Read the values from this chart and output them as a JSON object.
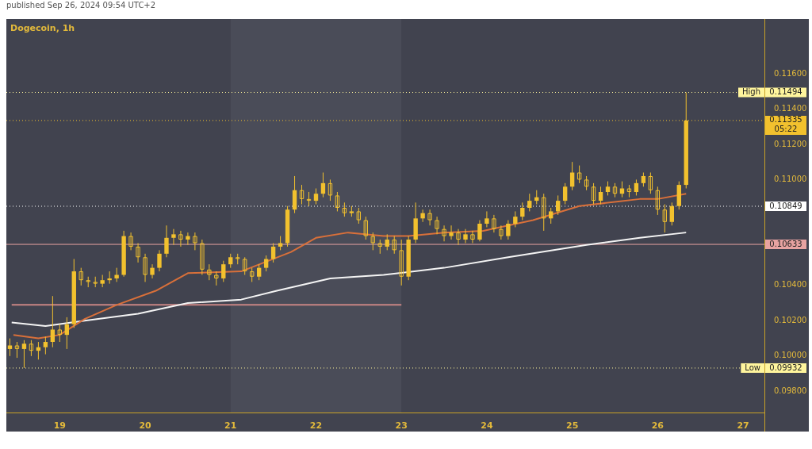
{
  "chart_data": {
    "type": "candlestick",
    "title": "Dogecoin, 1h",
    "subtitle": "published Sep 26, 2024 09:54 UTC+2",
    "color": "#f2c12e",
    "grid": false,
    "annotations": [
      {
        "text": "High",
        "y": 0.11494
      },
      {
        "text": "Low",
        "y": 0.09932
      }
    ],
    "xlim": [
      "2024-09-18T09:00",
      "2024-09-27T06:00"
    ],
    "xticks": [
      {
        "value": "2024-09-19",
        "label": "19"
      },
      {
        "value": "2024-09-20",
        "label": "20"
      },
      {
        "value": "2024-09-21",
        "label": "21"
      },
      {
        "value": "2024-09-22",
        "label": "22"
      },
      {
        "value": "2024-09-23",
        "label": "23"
      },
      {
        "value": "2024-09-24",
        "label": "24"
      },
      {
        "value": "2024-09-25",
        "label": "25"
      },
      {
        "value": "2024-09-26",
        "label": "26"
      },
      {
        "value": "2024-09-27",
        "label": "27"
      }
    ],
    "ylim": [
      0.0968,
      0.1191
    ],
    "yticks": [
      {
        "value": 0.098,
        "label": "0.09800"
      },
      {
        "value": 0.1,
        "label": "0.10000"
      },
      {
        "value": 0.102,
        "label": "0.10200"
      },
      {
        "value": 0.104,
        "label": "0.10400"
      },
      {
        "value": 0.11,
        "label": "0.11000"
      },
      {
        "value": 0.112,
        "label": "0.11200"
      },
      {
        "value": 0.114,
        "label": "0.11400"
      },
      {
        "value": 0.116,
        "label": "0.11600"
      }
    ],
    "bands": [
      {
        "axis": "x",
        "from": "2024-09-21",
        "to": "2024-09-23",
        "color": "#4a4c58"
      }
    ],
    "ref_lines": [
      {
        "axis": "y",
        "value": 0.11494,
        "label": "0.11494",
        "color": "#fff59d",
        "line_style": "dotted"
      },
      {
        "axis": "y",
        "value": 0.11335,
        "label": "0.11335\n05:22",
        "color": "#f2c12e",
        "line_style": "dotted"
      },
      {
        "axis": "y",
        "value": 0.10849,
        "label": "0.10849",
        "color": "#ffffff",
        "line_style": "dotted"
      },
      {
        "axis": "y",
        "value": 0.10633,
        "label": "0.10633",
        "color": "#e8a3a1",
        "line_style": "solid"
      },
      {
        "axis": "y",
        "value": 0.09932,
        "label": "0.09932",
        "color": "#fff59d",
        "line_style": "dotted"
      }
    ],
    "x": [
      "2024-09-18T10:00",
      "2024-09-18T12:00",
      "2024-09-18T14:00",
      "2024-09-18T16:00",
      "2024-09-18T18:00",
      "2024-09-18T20:00",
      "2024-09-18T22:00",
      "2024-09-19T00:00",
      "2024-09-19T02:00",
      "2024-09-19T04:00",
      "2024-09-19T06:00",
      "2024-09-19T08:00",
      "2024-09-19T10:00",
      "2024-09-19T12:00",
      "2024-09-19T14:00",
      "2024-09-19T16:00",
      "2024-09-19T18:00",
      "2024-09-19T20:00",
      "2024-09-19T22:00",
      "2024-09-20T00:00",
      "2024-09-20T02:00",
      "2024-09-20T04:00",
      "2024-09-20T06:00",
      "2024-09-20T08:00",
      "2024-09-20T10:00",
      "2024-09-20T12:00",
      "2024-09-20T14:00",
      "2024-09-20T16:00",
      "2024-09-20T18:00",
      "2024-09-20T20:00",
      "2024-09-20T22:00",
      "2024-09-21T00:00",
      "2024-09-21T02:00",
      "2024-09-21T04:00",
      "2024-09-21T06:00",
      "2024-09-21T08:00",
      "2024-09-21T10:00",
      "2024-09-21T12:00",
      "2024-09-21T14:00",
      "2024-09-21T16:00",
      "2024-09-21T18:00",
      "2024-09-21T20:00",
      "2024-09-21T22:00",
      "2024-09-22T00:00",
      "2024-09-22T02:00",
      "2024-09-22T04:00",
      "2024-09-22T06:00",
      "2024-09-22T08:00",
      "2024-09-22T10:00",
      "2024-09-22T12:00",
      "2024-09-22T14:00",
      "2024-09-22T16:00",
      "2024-09-22T18:00",
      "2024-09-22T20:00",
      "2024-09-22T22:00",
      "2024-09-23T00:00",
      "2024-09-23T02:00",
      "2024-09-23T04:00",
      "2024-09-23T06:00",
      "2024-09-23T08:00",
      "2024-09-23T10:00",
      "2024-09-23T12:00",
      "2024-09-23T14:00",
      "2024-09-23T16:00",
      "2024-09-23T18:00",
      "2024-09-23T20:00",
      "2024-09-23T22:00",
      "2024-09-24T00:00",
      "2024-09-24T02:00",
      "2024-09-24T04:00",
      "2024-09-24T06:00",
      "2024-09-24T08:00",
      "2024-09-24T10:00",
      "2024-09-24T12:00",
      "2024-09-24T14:00",
      "2024-09-24T16:00",
      "2024-09-24T18:00",
      "2024-09-24T20:00",
      "2024-09-24T22:00",
      "2024-09-25T00:00",
      "2024-09-25T02:00",
      "2024-09-25T04:00",
      "2024-09-25T06:00",
      "2024-09-25T08:00",
      "2024-09-25T10:00",
      "2024-09-25T12:00",
      "2024-09-25T14:00",
      "2024-09-25T16:00",
      "2024-09-25T18:00",
      "2024-09-25T20:00",
      "2024-09-25T22:00",
      "2024-09-26T00:00",
      "2024-09-26T02:00",
      "2024-09-26T04:00",
      "2024-09-26T06:00",
      "2024-09-26T08:00"
    ],
    "ohlc": [
      [
        0.1004,
        0.101,
        0.1,
        0.1006
      ],
      [
        0.1006,
        0.1008,
        0.0999,
        0.1004
      ],
      [
        0.1004,
        0.1009,
        0.09932,
        0.1007
      ],
      [
        0.1007,
        0.1009,
        0.1,
        0.1003
      ],
      [
        0.1003,
        0.1008,
        0.0998,
        0.1005
      ],
      [
        0.1005,
        0.1011,
        0.1001,
        0.1008
      ],
      [
        0.1008,
        0.1034,
        0.1005,
        0.1015
      ],
      [
        0.1015,
        0.1018,
        0.1008,
        0.1012
      ],
      [
        0.1012,
        0.1022,
        0.1004,
        0.1018
      ],
      [
        0.1018,
        0.1055,
        0.1016,
        0.1048
      ],
      [
        0.1048,
        0.105,
        0.104,
        0.1043
      ],
      [
        0.1043,
        0.1045,
        0.1039,
        0.1042
      ],
      [
        0.1042,
        0.1045,
        0.1039,
        0.1041
      ],
      [
        0.1041,
        0.1046,
        0.1039,
        0.1043
      ],
      [
        0.1043,
        0.1048,
        0.1041,
        0.1044
      ],
      [
        0.1044,
        0.105,
        0.1042,
        0.1046
      ],
      [
        0.1046,
        0.1071,
        0.1045,
        0.1068
      ],
      [
        0.1068,
        0.107,
        0.106,
        0.1062
      ],
      [
        0.1062,
        0.1064,
        0.1053,
        0.1056
      ],
      [
        0.1056,
        0.1058,
        0.1042,
        0.1046
      ],
      [
        0.1046,
        0.1052,
        0.1044,
        0.105
      ],
      [
        0.105,
        0.106,
        0.1048,
        0.1058
      ],
      [
        0.1058,
        0.1074,
        0.1056,
        0.1067
      ],
      [
        0.1067,
        0.1072,
        0.1063,
        0.1069
      ],
      [
        0.1069,
        0.1071,
        0.1062,
        0.1066
      ],
      [
        0.1066,
        0.107,
        0.1063,
        0.1068
      ],
      [
        0.1068,
        0.107,
        0.106,
        0.1064
      ],
      [
        0.1064,
        0.1066,
        0.1046,
        0.1049
      ],
      [
        0.1049,
        0.1052,
        0.1043,
        0.1046
      ],
      [
        0.1046,
        0.1048,
        0.104,
        0.1044
      ],
      [
        0.1044,
        0.1054,
        0.1042,
        0.1052
      ],
      [
        0.1052,
        0.1058,
        0.105,
        0.1056
      ],
      [
        0.1056,
        0.1058,
        0.1052,
        0.1055
      ],
      [
        0.1055,
        0.1056,
        0.1046,
        0.1048
      ],
      [
        0.1048,
        0.105,
        0.1042,
        0.1045
      ],
      [
        0.1045,
        0.1052,
        0.1043,
        0.105
      ],
      [
        0.105,
        0.1057,
        0.1048,
        0.1055
      ],
      [
        0.1055,
        0.1064,
        0.1053,
        0.1062
      ],
      [
        0.1062,
        0.1068,
        0.106,
        0.1064
      ],
      [
        0.1064,
        0.1085,
        0.1062,
        0.1083
      ],
      [
        0.1083,
        0.1102,
        0.1081,
        0.1094
      ],
      [
        0.1094,
        0.1097,
        0.1086,
        0.1089
      ],
      [
        0.1089,
        0.1093,
        0.1085,
        0.1088
      ],
      [
        0.1088,
        0.1095,
        0.1086,
        0.1092
      ],
      [
        0.1092,
        0.1104,
        0.109,
        0.1098
      ],
      [
        0.1098,
        0.11,
        0.1088,
        0.1091
      ],
      [
        0.1091,
        0.1093,
        0.1082,
        0.1084
      ],
      [
        0.1084,
        0.1087,
        0.1079,
        0.1081
      ],
      [
        0.1081,
        0.1085,
        0.1079,
        0.1082
      ],
      [
        0.1082,
        0.1084,
        0.1075,
        0.1077
      ],
      [
        0.1077,
        0.1079,
        0.1066,
        0.1068
      ],
      [
        0.1068,
        0.107,
        0.106,
        0.1064
      ],
      [
        0.1064,
        0.1066,
        0.1058,
        0.1062
      ],
      [
        0.1062,
        0.1069,
        0.106,
        0.1066
      ],
      [
        0.1066,
        0.1068,
        0.1058,
        0.106
      ],
      [
        0.106,
        0.1066,
        0.104,
        0.1045
      ],
      [
        0.1045,
        0.1068,
        0.1043,
        0.1066
      ],
      [
        0.1066,
        0.1087,
        0.1064,
        0.1078
      ],
      [
        0.1078,
        0.1083,
        0.1076,
        0.1081
      ],
      [
        0.1081,
        0.1083,
        0.1074,
        0.1077
      ],
      [
        0.1077,
        0.1079,
        0.1069,
        0.1072
      ],
      [
        0.1072,
        0.1074,
        0.1065,
        0.1068
      ],
      [
        0.1068,
        0.1074,
        0.1066,
        0.107
      ],
      [
        0.107,
        0.1072,
        0.1063,
        0.1066
      ],
      [
        0.1066,
        0.1072,
        0.1064,
        0.1069
      ],
      [
        0.1069,
        0.1071,
        0.1064,
        0.1066
      ],
      [
        0.1066,
        0.1077,
        0.1065,
        0.1075
      ],
      [
        0.1075,
        0.1082,
        0.1073,
        0.1078
      ],
      [
        0.1078,
        0.108,
        0.107,
        0.1072
      ],
      [
        0.1072,
        0.1074,
        0.1066,
        0.1068
      ],
      [
        0.1068,
        0.1077,
        0.1066,
        0.1075
      ],
      [
        0.1075,
        0.1082,
        0.1073,
        0.1079
      ],
      [
        0.1079,
        0.1087,
        0.1077,
        0.1084
      ],
      [
        0.1084,
        0.1092,
        0.1082,
        0.1088
      ],
      [
        0.1088,
        0.1094,
        0.1086,
        0.109
      ],
      [
        0.109,
        0.1092,
        0.1071,
        0.1078
      ],
      [
        0.1078,
        0.1084,
        0.1075,
        0.1082
      ],
      [
        0.1082,
        0.1091,
        0.108,
        0.1088
      ],
      [
        0.1088,
        0.1098,
        0.1086,
        0.1096
      ],
      [
        0.1096,
        0.111,
        0.1094,
        0.1104
      ],
      [
        0.1104,
        0.1108,
        0.1098,
        0.11
      ],
      [
        0.11,
        0.1102,
        0.1094,
        0.1096
      ],
      [
        0.1096,
        0.1098,
        0.1086,
        0.1088
      ],
      [
        0.1088,
        0.1096,
        0.1086,
        0.1093
      ],
      [
        0.1093,
        0.1099,
        0.1091,
        0.1096
      ],
      [
        0.1096,
        0.1098,
        0.109,
        0.1092
      ],
      [
        0.1092,
        0.1099,
        0.109,
        0.1095
      ],
      [
        0.1095,
        0.1097,
        0.109,
        0.1093
      ],
      [
        0.1093,
        0.11,
        0.1091,
        0.1098
      ],
      [
        0.1098,
        0.1104,
        0.1096,
        0.1102
      ],
      [
        0.1102,
        0.1104,
        0.1092,
        0.1094
      ],
      [
        0.1094,
        0.1096,
        0.108,
        0.1083
      ],
      [
        0.1083,
        0.1086,
        0.107,
        0.1076
      ],
      [
        0.1076,
        0.1087,
        0.1074,
        0.1085
      ],
      [
        0.1085,
        0.1099,
        0.1083,
        0.1097
      ],
      [
        0.1097,
        0.11494,
        0.1095,
        0.11335
      ]
    ],
    "series": [
      {
        "type": "line",
        "color": "#d9703a",
        "x": [
          "2024-09-18T11:00",
          "2024-09-18T18:00",
          "2024-09-19T00:00",
          "2024-09-19T07:00",
          "2024-09-19T16:00",
          "2024-09-20T03:00",
          "2024-09-20T12:00",
          "2024-09-21T03:00",
          "2024-09-21T17:00",
          "2024-09-22T00:00",
          "2024-09-22T09:00",
          "2024-09-22T19:00",
          "2024-09-23T02:00",
          "2024-09-23T12:00",
          "2024-09-23T23:00",
          "2024-09-24T13:00",
          "2024-09-25T02:00",
          "2024-09-25T19:00",
          "2024-09-26T00:00",
          "2024-09-26T08:00"
        ],
        "values": [
          0.1012,
          0.101,
          0.1012,
          0.1021,
          0.1029,
          0.1037,
          0.1047,
          0.1048,
          0.1059,
          0.1067,
          0.107,
          0.1068,
          0.1068,
          0.107,
          0.1071,
          0.1077,
          0.1085,
          0.1089,
          0.1089,
          0.1092
        ]
      },
      {
        "type": "line",
        "color": "#f4f4f4",
        "x": [
          "2024-09-18T10:30",
          "2024-09-18T20:00",
          "2024-09-19T07:00",
          "2024-09-19T22:00",
          "2024-09-20T12:00",
          "2024-09-21T03:00",
          "2024-09-21T13:00",
          "2024-09-22T04:00",
          "2024-09-22T19:00",
          "2024-09-23T12:00",
          "2024-09-24T06:00",
          "2024-09-25T04:00",
          "2024-09-25T19:00",
          "2024-09-26T08:00"
        ],
        "values": [
          0.1019,
          0.1017,
          0.102,
          0.1024,
          0.103,
          0.1032,
          0.1037,
          0.1044,
          0.1046,
          0.105,
          0.1056,
          0.1063,
          0.1067,
          0.107
        ]
      },
      {
        "type": "line",
        "color": "#c98583",
        "x": [
          "2024-09-18T10:30",
          "2024-09-23T00:00"
        ],
        "values": [
          0.1029,
          0.1029
        ]
      }
    ]
  }
}
